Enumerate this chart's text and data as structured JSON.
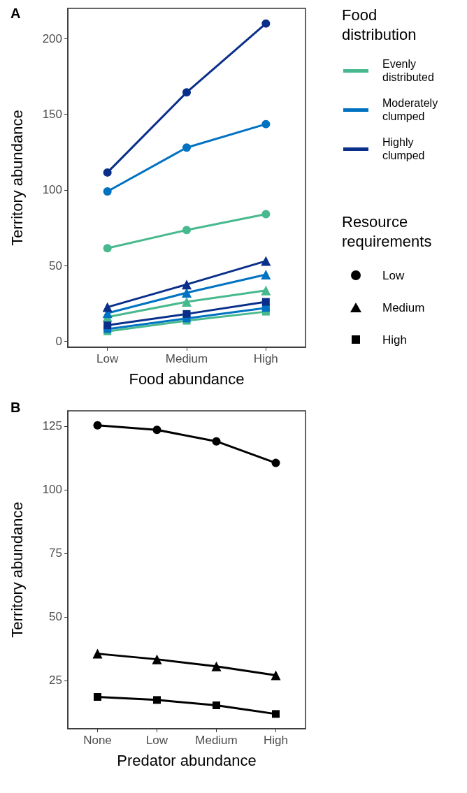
{
  "chart_data": [
    {
      "type": "line",
      "title": "A",
      "xlabel": "Food abundance",
      "ylabel": "Territory abundance",
      "categories": [
        "Low",
        "Medium",
        "High"
      ],
      "ylim": [
        -4,
        220
      ],
      "yticks": [
        0,
        50,
        100,
        150,
        200
      ],
      "legend_title": "Food distribution",
      "annotations": [
        "Evenly distributed",
        "Moderately clumped",
        "Highly clumped",
        "Resource requirements",
        "Low",
        "Medium",
        "High"
      ],
      "series": [
        {
          "color": "#48b98e",
          "marker": "circle",
          "values": [
            61.5,
            73.5,
            84
          ]
        },
        {
          "color": "#0072c2",
          "marker": "circle",
          "values": [
            99,
            128,
            143.5
          ]
        },
        {
          "color": "#0a2f8a",
          "marker": "circle",
          "values": [
            111.5,
            164.5,
            210
          ]
        },
        {
          "color": "#48b98e",
          "marker": "triangle",
          "values": [
            16,
            26,
            33.5
          ]
        },
        {
          "color": "#0072c2",
          "marker": "triangle",
          "values": [
            18.5,
            32,
            44
          ]
        },
        {
          "color": "#0a2f8a",
          "marker": "triangle",
          "values": [
            22.5,
            37.5,
            53
          ]
        },
        {
          "color": "#48b98e",
          "marker": "square",
          "values": [
            6.5,
            13.5,
            19.5
          ]
        },
        {
          "color": "#0072c2",
          "marker": "square",
          "values": [
            8,
            15,
            22
          ]
        },
        {
          "color": "#0a2f8a",
          "marker": "square",
          "values": [
            10.5,
            18,
            26
          ]
        }
      ]
    },
    {
      "type": "line",
      "title": "B",
      "xlabel": "Predator abundance",
      "ylabel": "Territory abundance",
      "categories": [
        "None",
        "Low",
        "Medium",
        "High"
      ],
      "ylim": [
        6,
        131
      ],
      "yticks": [
        25,
        50,
        75,
        100,
        125
      ],
      "series": [
        {
          "color": "#000000",
          "marker": "circle",
          "values": [
            125.3,
            123.5,
            119,
            110.5
          ]
        },
        {
          "color": "#000000",
          "marker": "triangle",
          "values": [
            35.5,
            33.3,
            30.5,
            27
          ]
        },
        {
          "color": "#000000",
          "marker": "square",
          "values": [
            18.5,
            17.3,
            15.2,
            11.8
          ]
        }
      ]
    }
  ]
}
